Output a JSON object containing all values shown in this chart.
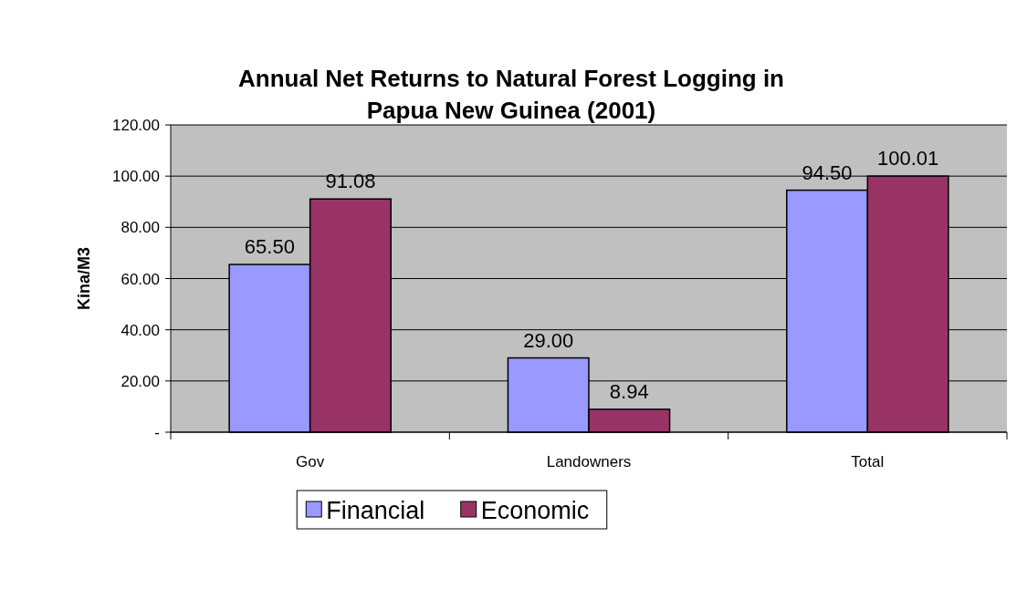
{
  "chart_data": {
    "type": "bar",
    "title": "Annual Net Returns to Natural Forest Logging in Papua New Guinea (2001)",
    "ylabel": "Kina/M3",
    "categories": [
      "Gov",
      "Landowners",
      "Total"
    ],
    "series": [
      {
        "name": "Financial",
        "color": "#9999ff",
        "values": [
          65.5,
          29,
          94.5
        ],
        "value_labels": [
          "65.50",
          "29.00",
          "94.50"
        ]
      },
      {
        "name": "Economic",
        "color": "#993366",
        "values": [
          91.08,
          8.94,
          100.01
        ],
        "value_labels": [
          "91.08",
          "8.94",
          "100.01"
        ]
      }
    ],
    "ylim": [
      0,
      120
    ],
    "yticks": [
      {
        "value": 0,
        "label": "-"
      },
      {
        "value": 20,
        "label": "20.00"
      },
      {
        "value": 40,
        "label": "40.00"
      },
      {
        "value": 60,
        "label": "60.00"
      },
      {
        "value": 80,
        "label": "80.00"
      },
      {
        "value": 100,
        "label": "100.00"
      },
      {
        "value": 120,
        "label": "120.00"
      }
    ],
    "grid": "y",
    "legend": "bottom"
  }
}
